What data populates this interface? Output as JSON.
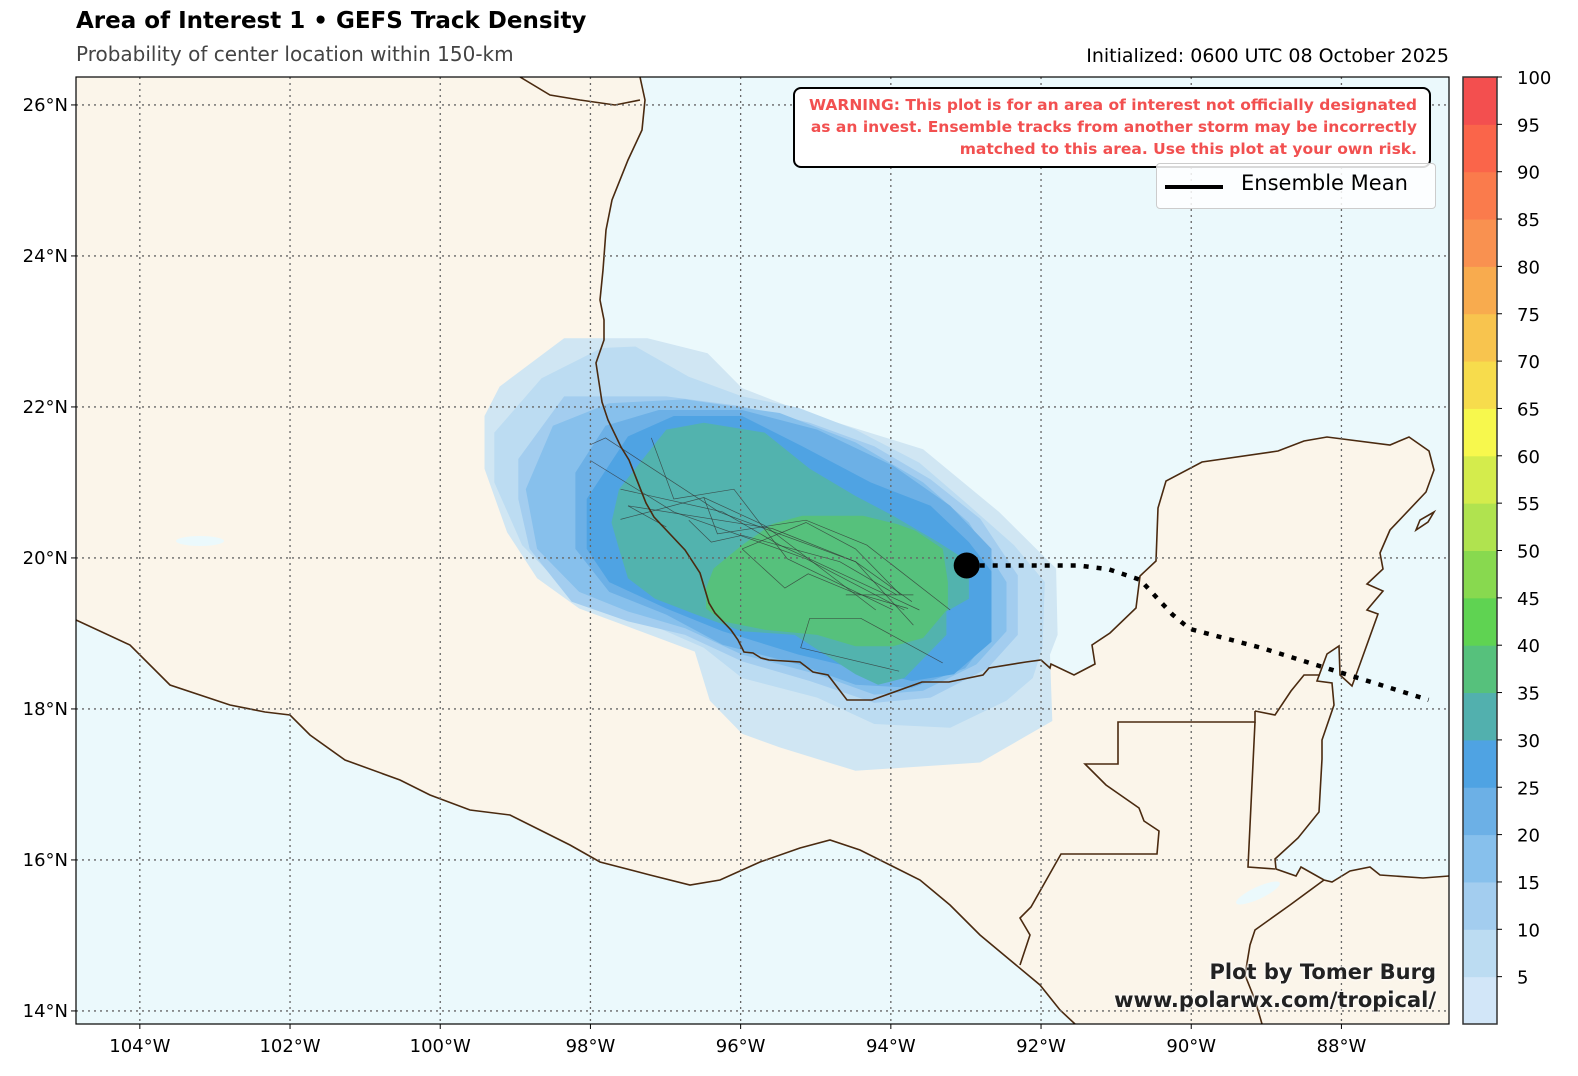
{
  "header": {
    "title": "Area of Interest 1 • GEFS Track Density",
    "subtitle": "Probability of center location within 150-km",
    "initialized": "Initialized: 0600 UTC 08 October 2025"
  },
  "warning": "WARNING: This plot is for an area of interest not officially designated as an invest. Ensemble tracks from another storm may be incorrectly matched to this area. Use this plot at your own risk.",
  "legend": {
    "ensemble_mean": "Ensemble Mean"
  },
  "credit": {
    "line1": "Plot by Tomer Burg",
    "line2": "www.polarwx.com/tropical/"
  },
  "colors": {
    "ocean": "#ebf9fc",
    "land": "#fbf5ea",
    "coast": "#4a2a10",
    "warning": "#f25050"
  },
  "chart_data": {
    "type": "map-density",
    "title": "Area of Interest 1 • GEFS Track Density",
    "extent": {
      "lon": [
        -104.85,
        -86.6
      ],
      "lat": [
        13.83,
        26.37
      ]
    },
    "xaxis": {
      "ticks": [
        -104,
        -102,
        -100,
        -98,
        -96,
        -94,
        -92,
        -90,
        -88
      ],
      "tick_labels": [
        "104°W",
        "102°W",
        "100°W",
        "98°W",
        "96°W",
        "94°W",
        "92°W",
        "90°W",
        "88°W"
      ]
    },
    "yaxis": {
      "ticks": [
        26,
        24,
        22,
        20,
        18,
        16,
        14
      ],
      "tick_labels": [
        "26°N",
        "24°N",
        "22°N",
        "20°N",
        "18°N",
        "16°N",
        "14°N"
      ]
    },
    "grid": true,
    "colorbar": {
      "range": [
        0,
        100
      ],
      "tick_labels": [
        "5",
        "10",
        "15",
        "20",
        "25",
        "30",
        "35",
        "40",
        "45",
        "50",
        "55",
        "60",
        "65",
        "70",
        "75",
        "80",
        "85",
        "90",
        "95",
        "100"
      ],
      "colors": [
        "#d2e6f8",
        "#bcdcf2",
        "#a3cdef",
        "#87c0ec",
        "#6cb0e6",
        "#4fa3e3",
        "#52b0ae",
        "#56c17c",
        "#5fd352",
        "#88d94f",
        "#b0e34f",
        "#d4ec4c",
        "#f7f84d",
        "#f7dc4c",
        "#f8c44e",
        "#f8ab4e",
        "#f99150",
        "#fa7b4c",
        "#fa654a",
        "#f34f4f"
      ]
    },
    "density_levels": [
      {
        "min": 0,
        "max": 5,
        "color": "#d0e6f3",
        "polygon": [
          [
            -99.41,
            21.88
          ],
          [
            -99.21,
            22.27
          ],
          [
            -98.35,
            22.91
          ],
          [
            -97.24,
            22.91
          ],
          [
            -96.44,
            22.71
          ],
          [
            -95.98,
            22.25
          ],
          [
            -95.13,
            21.92
          ],
          [
            -93.57,
            21.44
          ],
          [
            -92.56,
            20.61
          ],
          [
            -91.8,
            19.86
          ],
          [
            -91.78,
            18.98
          ],
          [
            -91.88,
            18.72
          ],
          [
            -91.85,
            17.84
          ],
          [
            -92.46,
            17.49
          ],
          [
            -92.81,
            17.29
          ],
          [
            -94.47,
            17.18
          ],
          [
            -95.48,
            17.49
          ],
          [
            -95.98,
            17.67
          ],
          [
            -96.41,
            18.11
          ],
          [
            -96.61,
            18.76
          ],
          [
            -97.5,
            19.09
          ],
          [
            -98.15,
            19.33
          ],
          [
            -98.71,
            19.73
          ],
          [
            -99.11,
            20.34
          ],
          [
            -99.41,
            21.18
          ]
        ]
      },
      {
        "min": 5,
        "max": 10,
        "color": "#bcdcf2",
        "polygon": [
          [
            -99.28,
            21.66
          ],
          [
            -98.65,
            22.38
          ],
          [
            -97.85,
            22.78
          ],
          [
            -97.4,
            22.8
          ],
          [
            -96.69,
            22.4
          ],
          [
            -95.98,
            22.14
          ],
          [
            -95.23,
            21.99
          ],
          [
            -94.47,
            21.7
          ],
          [
            -93.62,
            21.26
          ],
          [
            -93.01,
            20.74
          ],
          [
            -92.36,
            20.17
          ],
          [
            -91.95,
            19.68
          ],
          [
            -91.98,
            18.81
          ],
          [
            -92.11,
            18.41
          ],
          [
            -92.46,
            18.11
          ],
          [
            -93.21,
            17.75
          ],
          [
            -94.22,
            17.8
          ],
          [
            -94.98,
            18.15
          ],
          [
            -95.98,
            18.41
          ],
          [
            -96.49,
            18.81
          ],
          [
            -97.5,
            19.25
          ],
          [
            -98.3,
            19.55
          ],
          [
            -98.91,
            20.17
          ],
          [
            -99.28,
            21.0
          ]
        ]
      },
      {
        "min": 10,
        "max": 15,
        "color": "#a3cdef",
        "polygon": [
          [
            -98.96,
            21.31
          ],
          [
            -98.35,
            22.14
          ],
          [
            -96.99,
            22.14
          ],
          [
            -95.98,
            22.01
          ],
          [
            -95.08,
            21.79
          ],
          [
            -94.22,
            21.48
          ],
          [
            -93.47,
            21.04
          ],
          [
            -92.81,
            20.52
          ],
          [
            -92.31,
            19.77
          ],
          [
            -92.31,
            18.98
          ],
          [
            -92.71,
            18.54
          ],
          [
            -93.47,
            18.15
          ],
          [
            -94.22,
            18.08
          ],
          [
            -95.08,
            18.37
          ],
          [
            -95.98,
            18.63
          ],
          [
            -96.74,
            18.98
          ],
          [
            -97.5,
            19.16
          ],
          [
            -98.25,
            19.42
          ],
          [
            -98.81,
            20.12
          ],
          [
            -98.96,
            20.78
          ]
        ]
      },
      {
        "min": 15,
        "max": 20,
        "color": "#87c0ec",
        "polygon": [
          [
            -98.86,
            20.91
          ],
          [
            -98.5,
            21.75
          ],
          [
            -97.75,
            22.05
          ],
          [
            -96.74,
            22.1
          ],
          [
            -95.48,
            21.92
          ],
          [
            -94.47,
            21.53
          ],
          [
            -93.57,
            21.0
          ],
          [
            -92.96,
            20.47
          ],
          [
            -92.46,
            19.68
          ],
          [
            -92.46,
            19.03
          ],
          [
            -92.86,
            18.59
          ],
          [
            -93.57,
            18.24
          ],
          [
            -94.22,
            18.19
          ],
          [
            -94.98,
            18.46
          ],
          [
            -95.98,
            18.72
          ],
          [
            -96.74,
            19.07
          ],
          [
            -97.5,
            19.29
          ],
          [
            -98.15,
            19.55
          ],
          [
            -98.71,
            20.12
          ]
        ]
      },
      {
        "min": 20,
        "max": 25,
        "color": "#6cb0e6",
        "polygon": [
          [
            -98.2,
            21.13
          ],
          [
            -97.8,
            21.75
          ],
          [
            -97.09,
            21.96
          ],
          [
            -95.98,
            21.96
          ],
          [
            -94.98,
            21.7
          ],
          [
            -93.97,
            21.22
          ],
          [
            -93.21,
            20.69
          ],
          [
            -92.66,
            20.12
          ],
          [
            -92.66,
            18.98
          ],
          [
            -93.01,
            18.54
          ],
          [
            -93.72,
            18.28
          ],
          [
            -94.47,
            18.32
          ],
          [
            -95.23,
            18.59
          ],
          [
            -96.24,
            18.85
          ],
          [
            -96.99,
            19.25
          ],
          [
            -97.75,
            19.55
          ],
          [
            -98.2,
            20.12
          ]
        ]
      },
      {
        "min": 25,
        "max": 30,
        "color": "#4fa3e3",
        "polygon": [
          [
            -98.05,
            20.78
          ],
          [
            -97.5,
            21.61
          ],
          [
            -96.89,
            21.88
          ],
          [
            -95.98,
            21.88
          ],
          [
            -95.18,
            21.48
          ],
          [
            -94.27,
            21.0
          ],
          [
            -93.47,
            20.69
          ],
          [
            -92.96,
            20.21
          ],
          [
            -92.66,
            19.82
          ],
          [
            -92.66,
            18.89
          ],
          [
            -93.16,
            18.46
          ],
          [
            -93.72,
            18.37
          ],
          [
            -94.47,
            18.54
          ],
          [
            -95.23,
            18.72
          ],
          [
            -96.24,
            19.03
          ],
          [
            -96.99,
            19.33
          ],
          [
            -97.75,
            19.68
          ],
          [
            -98.05,
            20.12
          ]
        ]
      },
      {
        "min": 30,
        "max": 35,
        "color": "#52b3ae",
        "polygon": [
          [
            -97.62,
            20.91
          ],
          [
            -96.99,
            21.7
          ],
          [
            -96.49,
            21.79
          ],
          [
            -95.68,
            21.66
          ],
          [
            -95.08,
            21.18
          ],
          [
            -94.47,
            20.82
          ],
          [
            -93.97,
            20.56
          ],
          [
            -93.37,
            20.21
          ],
          [
            -92.96,
            19.95
          ],
          [
            -92.96,
            19.46
          ],
          [
            -93.26,
            19.29
          ],
          [
            -93.26,
            18.98
          ],
          [
            -93.82,
            18.41
          ],
          [
            -94.17,
            18.32
          ],
          [
            -94.47,
            18.46
          ],
          [
            -95.28,
            18.98
          ],
          [
            -95.98,
            19.03
          ],
          [
            -96.59,
            19.25
          ],
          [
            -97.14,
            19.46
          ],
          [
            -97.5,
            19.73
          ],
          [
            -97.62,
            20.12
          ],
          [
            -97.72,
            20.47
          ]
        ]
      },
      {
        "min": 35,
        "max": 40,
        "color": "#56c17c",
        "polygon": [
          [
            -96.36,
            19.86
          ],
          [
            -95.98,
            20.17
          ],
          [
            -95.58,
            20.45
          ],
          [
            -95.18,
            20.56
          ],
          [
            -94.37,
            20.56
          ],
          [
            -93.92,
            20.45
          ],
          [
            -93.67,
            20.36
          ],
          [
            -93.31,
            20.12
          ],
          [
            -93.24,
            19.68
          ],
          [
            -93.24,
            19.33
          ],
          [
            -93.57,
            18.94
          ],
          [
            -93.97,
            18.83
          ],
          [
            -94.47,
            18.83
          ],
          [
            -94.98,
            18.98
          ],
          [
            -95.68,
            19.05
          ],
          [
            -96.24,
            19.16
          ],
          [
            -96.46,
            19.33
          ],
          [
            -96.46,
            19.6
          ]
        ]
      }
    ],
    "member_tracks": [
      [
        [
          -98,
          21.5
        ],
        [
          -97.8,
          21.59
        ],
        [
          -96.29,
          20.61
        ],
        [
          -94.47,
          19.95
        ],
        [
          -93.72,
          19.42
        ]
      ],
      [
        [
          -98,
          21.29
        ],
        [
          -96.89,
          20.61
        ],
        [
          -95.13,
          19.99
        ],
        [
          -93.82,
          19.31
        ]
      ],
      [
        [
          -97.19,
          21.59
        ],
        [
          -96.89,
          20.78
        ],
        [
          -96.09,
          20.91
        ],
        [
          -95.38,
          19.99
        ],
        [
          -93.97,
          19.31
        ]
      ],
      [
        [
          -97.6,
          20.91
        ],
        [
          -96.24,
          20.61
        ],
        [
          -95.48,
          20.17
        ],
        [
          -93.62,
          19.31
        ]
      ],
      [
        [
          -97.5,
          20.69
        ],
        [
          -96.99,
          20.41
        ]
      ],
      [
        [
          -97.6,
          20.51
        ],
        [
          -96.49,
          20.8
        ],
        [
          -95.68,
          20.43
        ],
        [
          -94.2,
          19.31
        ]
      ],
      [
        [
          -97.5,
          20.69
        ],
        [
          -95.58,
          20.39
        ],
        [
          -94.47,
          19.95
        ],
        [
          -93.7,
          19.11
        ]
      ],
      [
        [
          -96.49,
          20.8
        ],
        [
          -96.31,
          20.32
        ],
        [
          -95.13,
          20.5
        ],
        [
          -94.32,
          20.17
        ],
        [
          -93.21,
          19.31
        ]
      ],
      [
        [
          -96.69,
          20.5
        ],
        [
          -96.39,
          20.21
        ],
        [
          -95.98,
          20.3
        ],
        [
          -94.68,
          19.95
        ],
        [
          -93.92,
          19.51
        ]
      ],
      [
        [
          -95.98,
          20.12
        ],
        [
          -95.13,
          20.47
        ],
        [
          -94.47,
          20.12
        ],
        [
          -93.87,
          19.51
        ],
        [
          -93.7,
          19.51
        ],
        [
          -94.6,
          19.51
        ]
      ],
      [
        [
          -95.08,
          19.2
        ],
        [
          -94.4,
          19.2
        ],
        [
          -93.31,
          18.61
        ]
      ],
      [
        [
          -95.08,
          19.2
        ],
        [
          -95.2,
          18.81
        ],
        [
          -93.89,
          18.5
        ]
      ],
      [
        [
          -95.98,
          20.12
        ],
        [
          -95.41,
          19.6
        ],
        [
          -95.1,
          19.79
        ],
        [
          -94.52,
          19.55
        ],
        [
          -93.77,
          19.33
        ]
      ]
    ],
    "ensemble_mean": [
      [
        -92.99,
        19.9
      ],
      [
        -91.5,
        19.9
      ],
      [
        -91.1,
        19.85
      ],
      [
        -90.68,
        19.71
      ],
      [
        -90.25,
        19.25
      ],
      [
        -90.02,
        19.06
      ],
      [
        -89.07,
        18.81
      ],
      [
        -86.84,
        18.12
      ]
    ],
    "initial_position": [
      -92.99,
      19.9
    ]
  }
}
